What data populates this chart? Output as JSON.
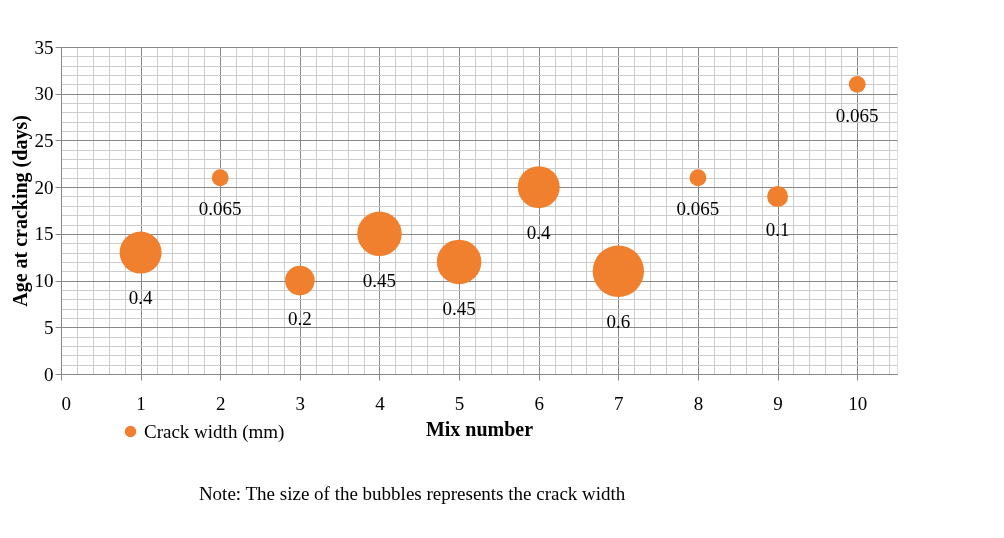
{
  "chart_data": {
    "type": "bubble",
    "xlabel": "Mix number",
    "ylabel": "Age at cracking (days)",
    "x": [
      1,
      2,
      3,
      4,
      5,
      6,
      7,
      8,
      9,
      10
    ],
    "series": [
      {
        "name": "Crack width (mm)",
        "color": "#f07f2e",
        "values": [
          13,
          21,
          10,
          15,
          12,
          20,
          11,
          21,
          19,
          31
        ],
        "sizes": [
          0.4,
          0.065,
          0.2,
          0.45,
          0.45,
          0.4,
          0.6,
          0.065,
          0.1,
          0.065
        ],
        "value_labels": [
          "0.4",
          "0.065",
          "0.2",
          "0.45",
          "0.45",
          "0.4",
          "0.6",
          "0.065",
          "0.1",
          "0.065"
        ]
      }
    ],
    "xlim": [
      0,
      10.5
    ],
    "xticks": [
      0,
      1,
      2,
      3,
      4,
      5,
      6,
      7,
      8,
      9,
      10
    ],
    "ylim": [
      0,
      35
    ],
    "yticks": [
      0,
      5,
      10,
      15,
      20,
      25,
      30,
      35
    ],
    "grid": true,
    "legend": "bottom left",
    "annotations": [
      "Note: The size of the bubbles represents the crack width"
    ]
  }
}
